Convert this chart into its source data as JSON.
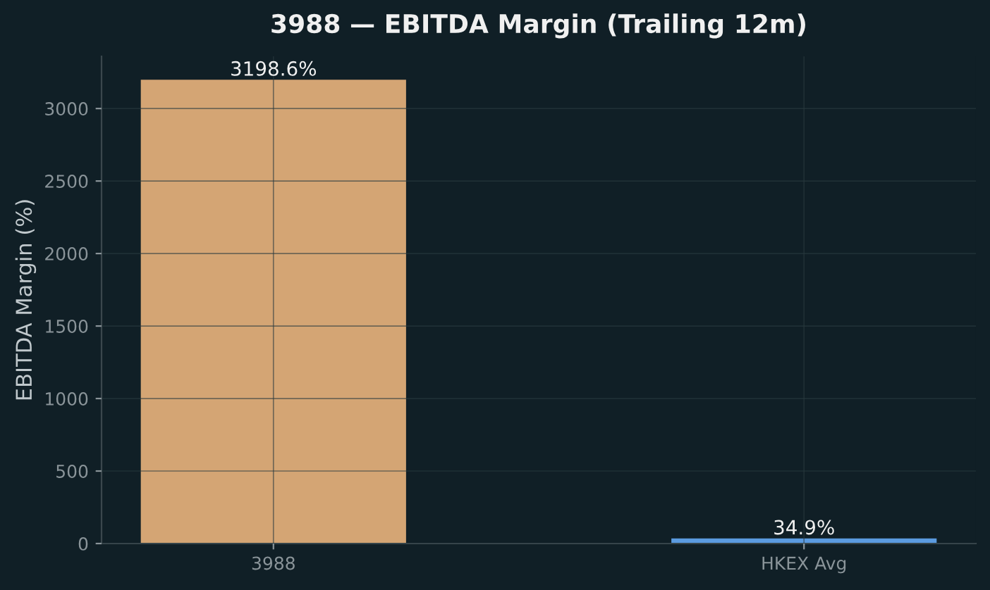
{
  "chart_data": {
    "type": "bar",
    "title": "3988 — EBITDA Margin (Trailing 12m)",
    "ylabel": "EBITDA Margin (%)",
    "categories": [
      "3988",
      "HKEX Avg"
    ],
    "values": [
      3198.6,
      34.9
    ],
    "colors": [
      "#d4a574",
      "#5b9be0"
    ],
    "value_labels": [
      "3198.6%",
      "34.9%"
    ],
    "ylim": [
      0,
      3360
    ],
    "yticks": [
      0,
      500,
      1000,
      1500,
      2000,
      2500,
      3000
    ],
    "grid": true
  }
}
